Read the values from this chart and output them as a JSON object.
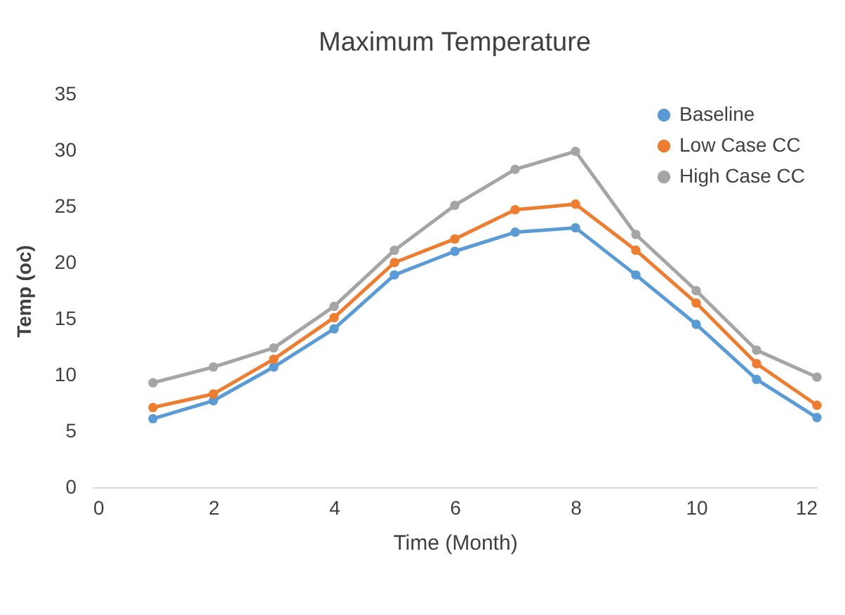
{
  "chart_data": {
    "type": "line",
    "title": "Maximum Temperature",
    "xlabel": "Time (Month)",
    "ylabel": "Temp (oc)",
    "x": [
      1,
      2,
      3,
      4,
      5,
      6,
      7,
      8,
      9,
      10,
      11,
      12
    ],
    "series": [
      {
        "name": "Baseline",
        "color": "#5b9bd5",
        "values": [
          6.1,
          7.7,
          10.7,
          14.1,
          18.9,
          21.0,
          22.7,
          23.1,
          18.9,
          14.5,
          9.6,
          6.2
        ]
      },
      {
        "name": "Low Case CC",
        "color": "#ed7d31",
        "values": [
          7.1,
          8.3,
          11.4,
          15.1,
          20.0,
          22.1,
          24.7,
          25.2,
          21.1,
          16.4,
          11.0,
          7.3
        ]
      },
      {
        "name": "High Case CC",
        "color": "#a5a5a5",
        "values": [
          9.3,
          10.7,
          12.4,
          16.1,
          21.1,
          25.1,
          28.3,
          29.9,
          22.5,
          17.5,
          12.2,
          9.8
        ]
      }
    ],
    "xlim": [
      0,
      12
    ],
    "xticks": [
      0,
      2,
      4,
      6,
      8,
      10,
      12
    ],
    "ylim": [
      0,
      35
    ],
    "yticks": [
      0,
      5,
      10,
      15,
      20,
      25,
      30,
      35
    ],
    "legend": "top right",
    "marker": "circle",
    "line_style": "solid",
    "grid": false
  }
}
